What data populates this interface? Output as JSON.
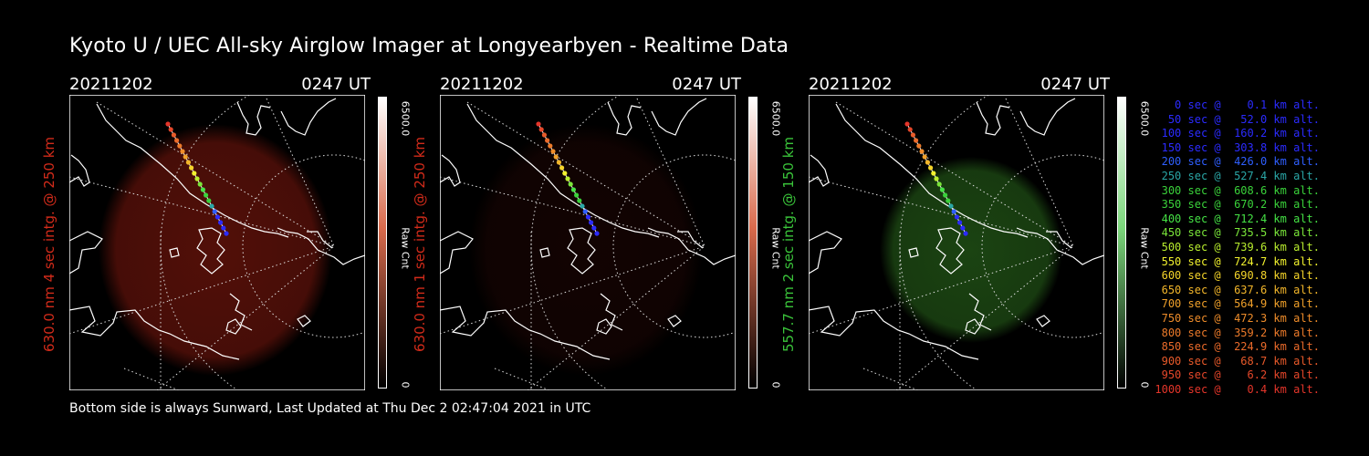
{
  "title": "Kyoto U / UEC All-sky Airglow Imager at Longyearbyen - Realtime Data",
  "footer": "Bottom side is always Sunward, Last Updated at Thu Dec  2 02:47:04 2021 in UTC",
  "panels": [
    {
      "date": "20211202",
      "time": "0247 UT",
      "ylabel": "630.0 nm 4 sec intg. @ 250 km",
      "ylabel_color": "#d22b1a",
      "cbar_max": "6500.0",
      "cbar_min": "0",
      "cbar_unit": "Raw Cnt",
      "glow": "red",
      "glow_strength": 0.55
    },
    {
      "date": "20211202",
      "time": "0247 UT",
      "ylabel": "630.0 nm 1 sec intg. @ 250 km",
      "ylabel_color": "#d22b1a",
      "cbar_max": "6500.0",
      "cbar_min": "0",
      "cbar_unit": "Raw Cnt",
      "glow": "red",
      "glow_strength": 0.12
    },
    {
      "date": "20211202",
      "time": "0247 UT",
      "ylabel": "557.7 nm 2 sec intg. @ 150 km",
      "ylabel_color": "#3ac43a",
      "cbar_max": "6500.0",
      "cbar_min": "0",
      "cbar_unit": "Raw Cnt",
      "glow": "green",
      "glow_strength": 0.45
    }
  ],
  "legend": [
    {
      "text": "   0 sec @    0.1 km alt.",
      "color": "#2b2bff"
    },
    {
      "text": "  50 sec @   52.0 km alt.",
      "color": "#2b2bff"
    },
    {
      "text": " 100 sec @  160.2 km alt.",
      "color": "#2b2bff"
    },
    {
      "text": " 150 sec @  303.8 km alt.",
      "color": "#2b2bff"
    },
    {
      "text": " 200 sec @  426.0 km alt.",
      "color": "#2f5fff"
    },
    {
      "text": " 250 sec @  527.4 km alt.",
      "color": "#2aa6a6"
    },
    {
      "text": " 300 sec @  608.6 km alt.",
      "color": "#3ad23a"
    },
    {
      "text": " 350 sec @  670.2 km alt.",
      "color": "#3ad23a"
    },
    {
      "text": " 400 sec @  712.4 km alt.",
      "color": "#45e245"
    },
    {
      "text": " 450 sec @  735.5 km alt.",
      "color": "#7ae63a"
    },
    {
      "text": " 500 sec @  739.6 km alt.",
      "color": "#b9ee2e"
    },
    {
      "text": " 550 sec @  724.7 km alt.",
      "color": "#f2f22e"
    },
    {
      "text": " 600 sec @  690.8 km alt.",
      "color": "#f5d52a"
    },
    {
      "text": " 650 sec @  637.6 km alt.",
      "color": "#f3b62a"
    },
    {
      "text": " 700 sec @  564.9 km alt.",
      "color": "#f0a02a"
    },
    {
      "text": " 750 sec @  472.3 km alt.",
      "color": "#ee8c2a"
    },
    {
      "text": " 800 sec @  359.2 km alt.",
      "color": "#ec7a2a"
    },
    {
      "text": " 850 sec @  224.9 km alt.",
      "color": "#ea6a2a"
    },
    {
      "text": " 900 sec @   68.7 km alt.",
      "color": "#e85a2a"
    },
    {
      "text": " 950 sec @    6.2 km alt.",
      "color": "#e6472a"
    },
    {
      "text": "1000 sec @    0.4 km alt.",
      "color": "#e4352a"
    }
  ]
}
